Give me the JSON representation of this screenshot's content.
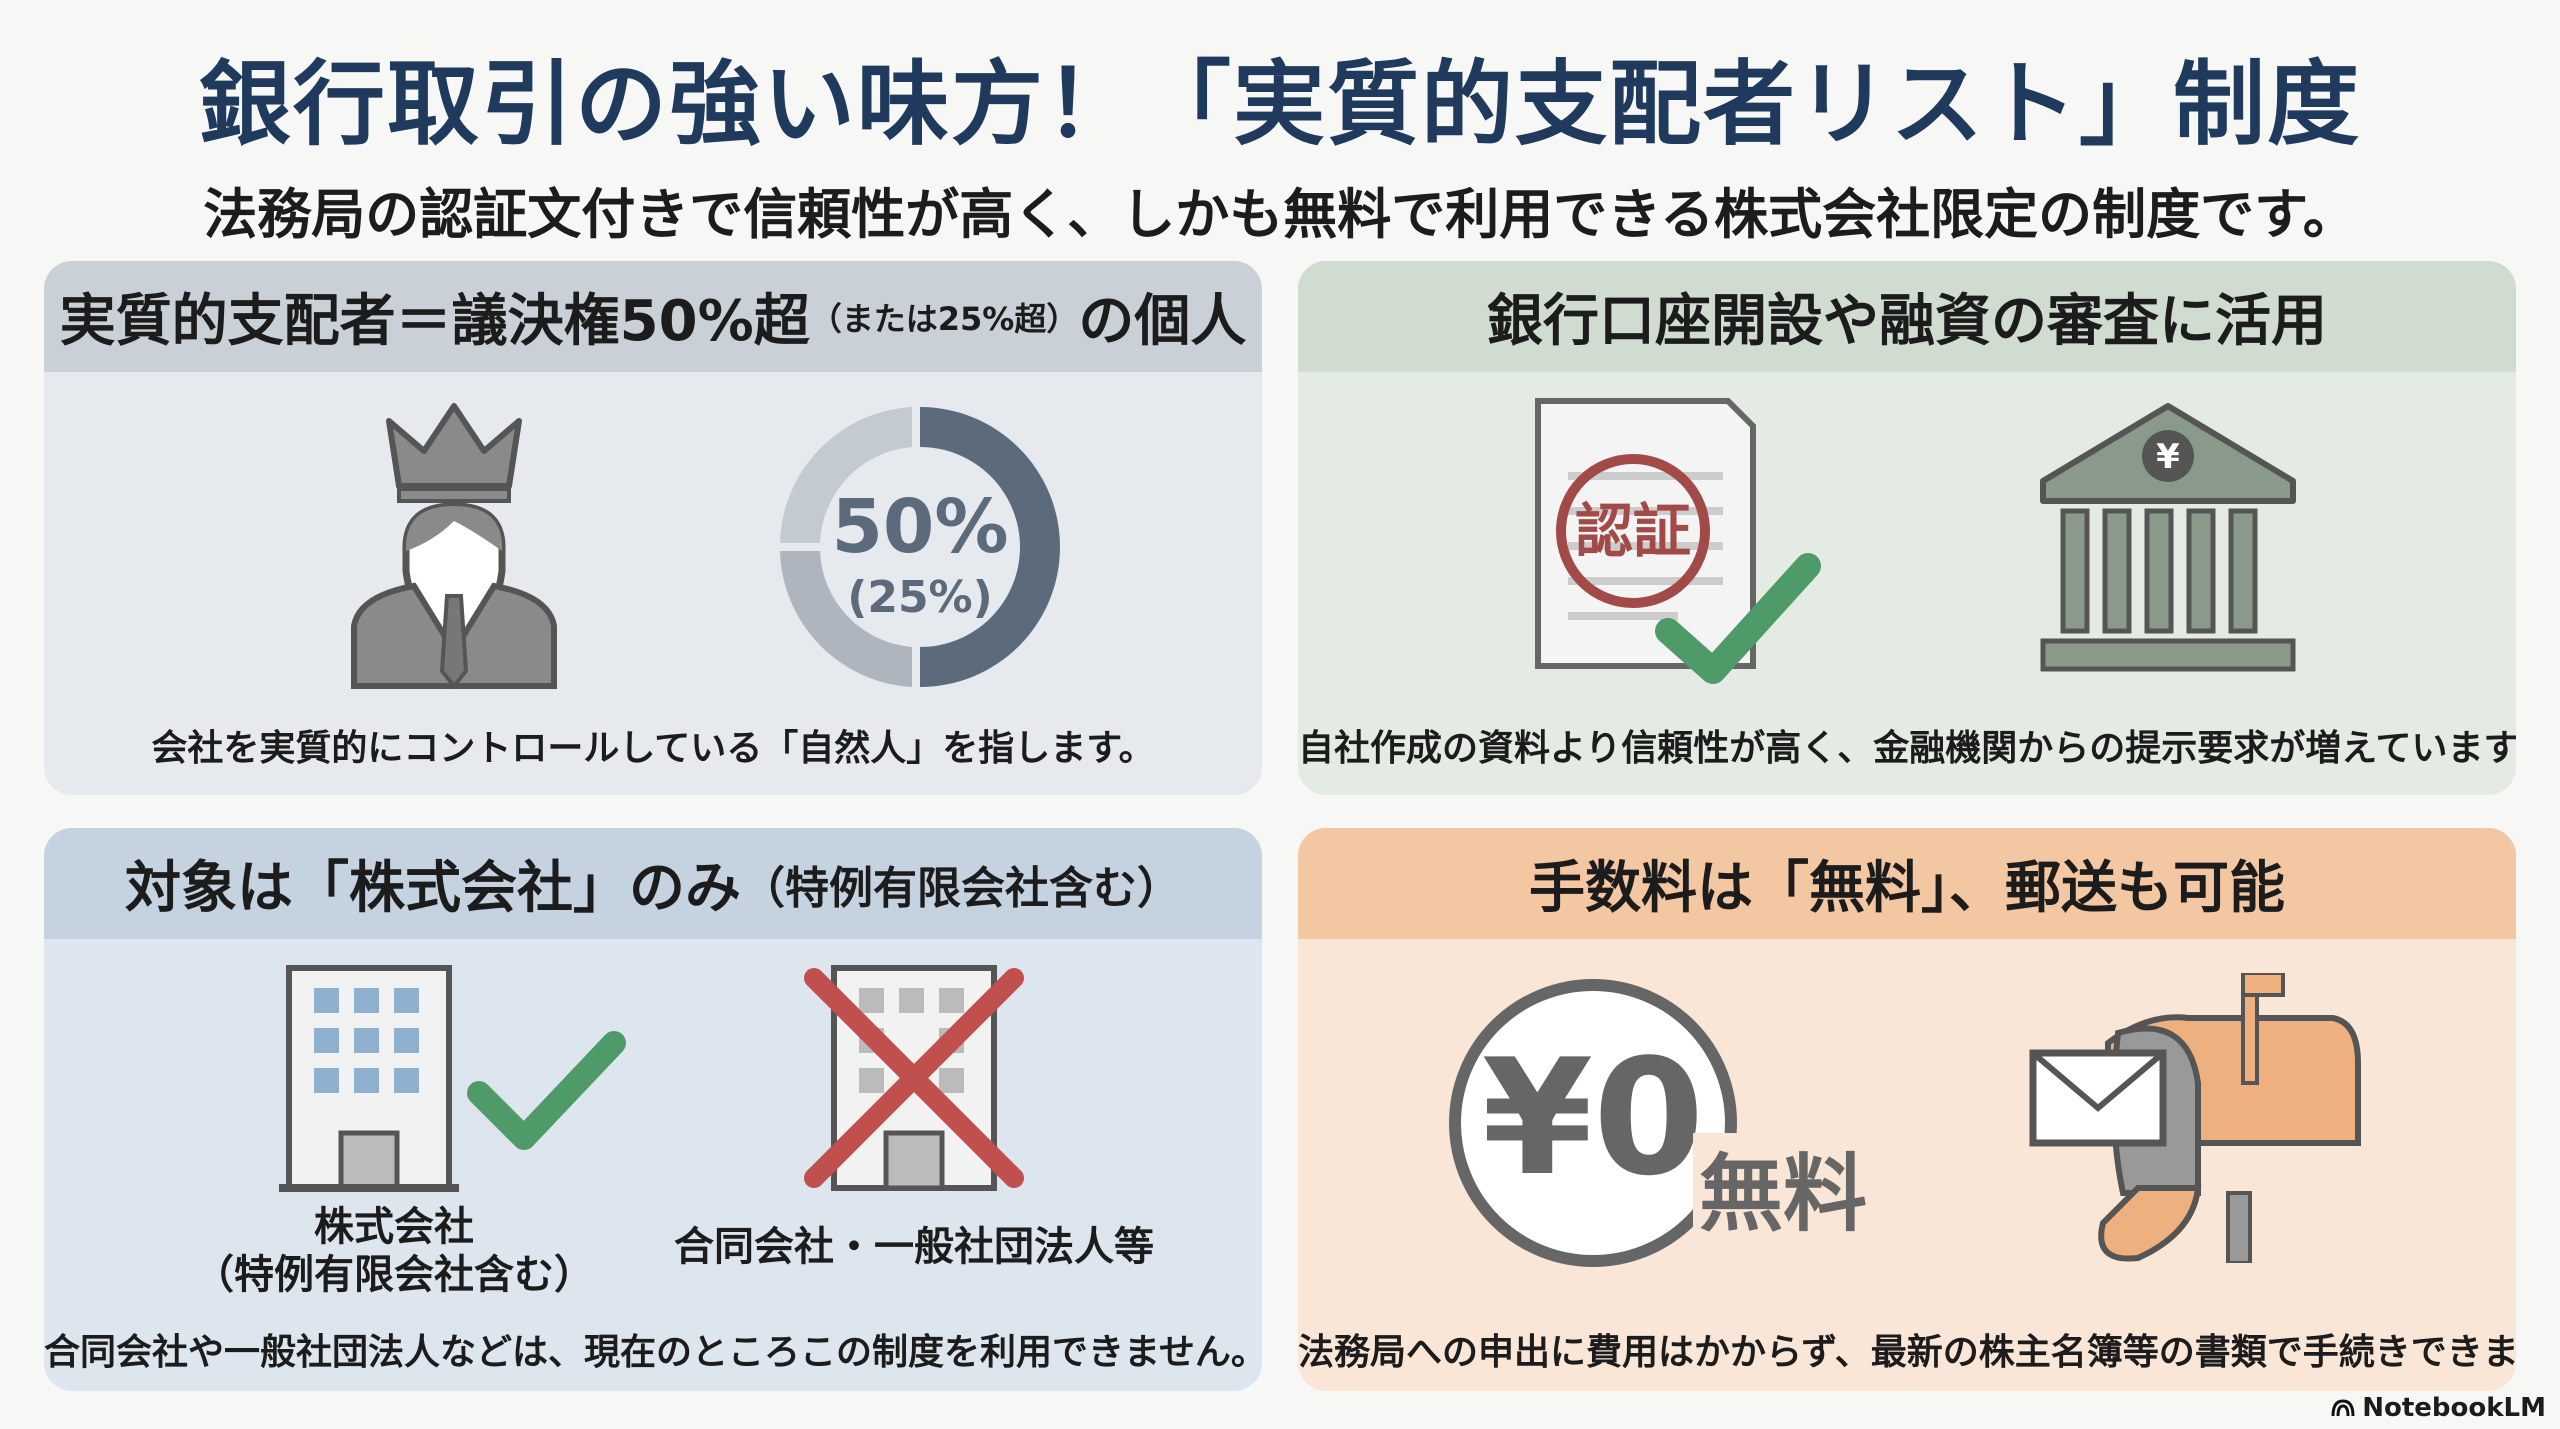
{
  "header": {
    "title": "銀行取引の強い味方！「実質的支配者リスト」制度",
    "subtitle": "法務局の認証文付きで信頼性が高く、しかも無料で利用できる株式会社限定の制度です。"
  },
  "panels": [
    {
      "title_main": "実質的支配者＝議決権50%超",
      "title_small": "（または25%超）",
      "title_tail": "の個人",
      "donut_main": "50%",
      "donut_sub": "(25%)",
      "donut_percent": 50,
      "caption": "会社を実質的にコントロールしている「自然人」を指します。",
      "icons": [
        "crowned-person-icon",
        "donut-chart-icon"
      ],
      "colors": {
        "header": "#c9d0d8",
        "body": "#e6e9ee"
      }
    },
    {
      "title": "銀行口座開設や融資の審査に活用",
      "stamp_text": "認証",
      "bank_symbol": "¥",
      "caption": "自社作成の資料より信頼性が高く、金融機関からの提示要求が増えています。",
      "icons": [
        "certified-document-icon",
        "bank-icon"
      ],
      "colors": {
        "header": "#cfdccf",
        "body": "#e4ebe3"
      }
    },
    {
      "title_main": "対象は「株式会社」のみ",
      "title_small": "（特例有限会社含む）",
      "ok_label_1": "株式会社",
      "ok_label_2": "（特例有限会社含む）",
      "ng_label": "合同会社・一般社団法人等",
      "caption": "合同会社や一般社団法人などは、現在のところこの制度を利用できません。",
      "icons": [
        "building-check-icon",
        "building-cross-icon"
      ],
      "colors": {
        "header": "#c5d3e0",
        "body": "#dde6ee"
      }
    },
    {
      "title": "手数料は「無料」、郵送も可能",
      "coin_text": "¥0",
      "free_text": "無料",
      "caption": "法務局への申出に費用はかからず、最新の株主名簿等の書類で手続きできます。",
      "icons": [
        "yen-zero-coin-icon",
        "mailbox-icon"
      ],
      "colors": {
        "header": "#f3c7a2",
        "body": "#f9e6d7"
      }
    }
  ],
  "brand": "NotebookLM",
  "colors": {
    "title": "#1f3a5c",
    "check": "#4e9a68",
    "cross": "#c0504d",
    "mail_orange": "#eeb07f"
  }
}
